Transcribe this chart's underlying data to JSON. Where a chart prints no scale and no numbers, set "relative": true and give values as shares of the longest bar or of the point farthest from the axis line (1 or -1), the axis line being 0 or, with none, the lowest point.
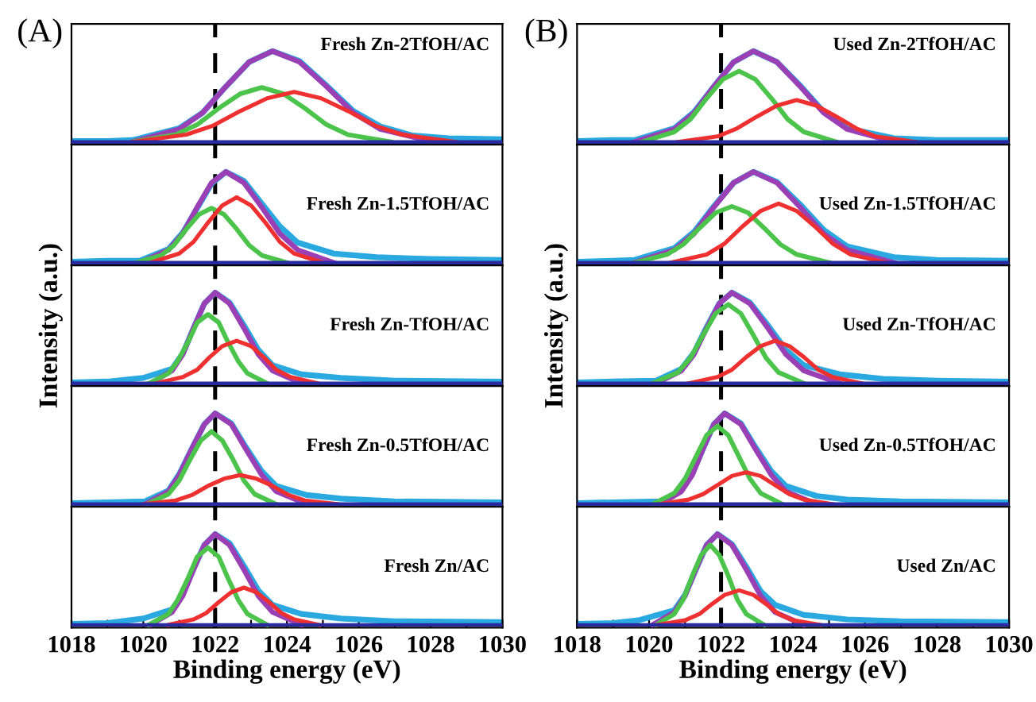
{
  "chart_data": [
    {
      "type": "line",
      "relative": true,
      "xlim": [
        1018,
        1030
      ],
      "tick_labels": false,
      "annotations": [
        "(A)",
        "Fresh Zn-2TfOH/AC"
      ],
      "ref_lines": [
        {
          "axis": "x",
          "value": 1022,
          "color": "#000000",
          "line_style": "dashed"
        }
      ],
      "series": [
        {
          "color": "#29a9e0",
          "x": [
            1018,
            1019,
            1019.7,
            1021,
            1021.65,
            1022.3,
            1022.95,
            1023.6,
            1024.35,
            1025.1,
            1025.85,
            1026.6,
            1027.5,
            1028.5,
            1030
          ],
          "values": [
            0.01,
            0.01,
            0.02,
            0.15,
            0.32,
            0.61,
            0.88,
            1,
            0.89,
            0.62,
            0.34,
            0.17,
            0.07,
            0.04,
            0.03
          ]
        },
        {
          "color": "#9b3fb5",
          "x": [
            1019.7,
            1021.0,
            1021.65,
            1022.3,
            1022.95,
            1023.6,
            1024.35,
            1025.1,
            1025.85,
            1026.6,
            1028.1
          ],
          "values": [
            0,
            0.14,
            0.32,
            0.61,
            0.88,
            1,
            0.88,
            0.61,
            0.32,
            0.14,
            0
          ]
        },
        {
          "color": "#4cc34a",
          "x": [
            1019.7,
            1020.9,
            1021.5,
            1022.1,
            1022.7,
            1023.3,
            1023.9,
            1024.5,
            1025.1,
            1025.7,
            1026.9
          ],
          "values": [
            0,
            0.08,
            0.19,
            0.37,
            0.53,
            0.6,
            0.53,
            0.37,
            0.19,
            0.08,
            0
          ]
        },
        {
          "color": "#ee3030",
          "x": [
            1019.7,
            1021.2,
            1021.95,
            1022.7,
            1023.45,
            1024.2,
            1024.95,
            1025.7,
            1026.45,
            1027.2,
            1028.7
          ],
          "values": [
            0,
            0.08,
            0.18,
            0.34,
            0.48,
            0.55,
            0.48,
            0.34,
            0.18,
            0.08,
            0
          ]
        },
        {
          "color": "#2a2aa0",
          "x": [
            1018,
            1030
          ],
          "values": [
            0,
            0
          ]
        }
      ]
    },
    {
      "type": "line",
      "relative": true,
      "xlim": [
        1018,
        1030
      ],
      "tick_labels": false,
      "annotations": [
        "Fresh Zn-1.5TfOH/AC"
      ],
      "ref_lines": [
        {
          "axis": "x",
          "value": 1022,
          "color": "#000000",
          "line_style": "dashed"
        }
      ],
      "series": [
        {
          "color": "#29a9e0",
          "x": [
            1018,
            1019,
            1019.9,
            1020.7,
            1021.1,
            1021.5,
            1021.9,
            1022.3,
            1022.8,
            1023.3,
            1023.8,
            1024.3,
            1025.3,
            1026.5,
            1028,
            1030
          ],
          "values": [
            0.01,
            0.02,
            0.02,
            0.15,
            0.33,
            0.6,
            0.87,
            1,
            0.9,
            0.65,
            0.4,
            0.22,
            0.1,
            0.06,
            0.04,
            0.03
          ]
        },
        {
          "color": "#9b3fb5",
          "x": [
            1019.9,
            1020.7,
            1021.1,
            1021.5,
            1021.9,
            1022.3,
            1022.8,
            1023.3,
            1023.8,
            1024.3,
            1025.3
          ],
          "values": [
            0,
            0.14,
            0.32,
            0.61,
            0.88,
            1,
            0.88,
            0.61,
            0.32,
            0.14,
            0
          ]
        },
        {
          "color": "#4cc34a",
          "x": [
            1019.8,
            1020.5,
            1020.85,
            1021.2,
            1021.55,
            1021.9,
            1022.25,
            1022.6,
            1022.95,
            1023.3,
            1024.0
          ],
          "values": [
            0,
            0.08,
            0.19,
            0.37,
            0.53,
            0.6,
            0.53,
            0.37,
            0.19,
            0.08,
            0
          ]
        },
        {
          "color": "#ee3030",
          "x": [
            1020.2,
            1021.0,
            1021.4,
            1021.8,
            1022.2,
            1022.6,
            1023.0,
            1023.4,
            1023.8,
            1024.2,
            1025.0
          ],
          "values": [
            0,
            0.1,
            0.23,
            0.44,
            0.63,
            0.72,
            0.63,
            0.44,
            0.23,
            0.1,
            0
          ]
        },
        {
          "color": "#2a2aa0",
          "x": [
            1018,
            1030
          ],
          "values": [
            0,
            0
          ]
        }
      ]
    },
    {
      "type": "line",
      "relative": true,
      "xlim": [
        1018,
        1030
      ],
      "tick_labels": false,
      "ylabel": "Intensity (a.u.)",
      "annotations": [
        "Fresh Zn-TfOH/AC"
      ],
      "ref_lines": [
        {
          "axis": "x",
          "value": 1022,
          "color": "#000000",
          "line_style": "dashed"
        }
      ],
      "series": [
        {
          "color": "#29a9e0",
          "x": [
            1018,
            1019,
            1020,
            1020.8,
            1021.1,
            1021.4,
            1021.7,
            1022,
            1022.4,
            1022.8,
            1023.2,
            1023.6,
            1024.4,
            1025.5,
            1027,
            1030
          ],
          "values": [
            0.01,
            0.02,
            0.06,
            0.16,
            0.33,
            0.61,
            0.88,
            1,
            0.89,
            0.64,
            0.37,
            0.2,
            0.1,
            0.06,
            0.03,
            0.02
          ]
        },
        {
          "color": "#9b3fb5",
          "x": [
            1020.2,
            1020.8,
            1021.1,
            1021.4,
            1021.7,
            1022.0,
            1022.4,
            1022.8,
            1023.2,
            1023.6,
            1024.4
          ],
          "values": [
            0,
            0.14,
            0.32,
            0.61,
            0.88,
            1,
            0.88,
            0.61,
            0.32,
            0.14,
            0
          ]
        },
        {
          "color": "#4cc34a",
          "x": [
            1020.15,
            1020.7,
            1020.95,
            1021.25,
            1021.5,
            1021.8,
            1022.1,
            1022.35,
            1022.65,
            1022.9,
            1023.45
          ],
          "values": [
            0,
            0.11,
            0.24,
            0.46,
            0.67,
            0.76,
            0.67,
            0.46,
            0.24,
            0.11,
            0
          ]
        },
        {
          "color": "#ee3030",
          "x": [
            1020.35,
            1021.1,
            1021.5,
            1021.85,
            1022.2,
            1022.6,
            1023.0,
            1023.35,
            1023.7,
            1024.1,
            1024.85
          ],
          "values": [
            0,
            0.07,
            0.15,
            0.29,
            0.41,
            0.47,
            0.41,
            0.29,
            0.15,
            0.07,
            0
          ]
        },
        {
          "color": "#2a2aa0",
          "x": [
            1018,
            1030
          ],
          "values": [
            0,
            0
          ]
        }
      ]
    },
    {
      "type": "line",
      "relative": true,
      "xlim": [
        1018,
        1030
      ],
      "tick_labels": false,
      "annotations": [
        "Fresh Zn-0.5TfOH/AC"
      ],
      "ref_lines": [
        {
          "axis": "x",
          "value": 1022,
          "color": "#000000",
          "line_style": "dashed"
        }
      ],
      "series": [
        {
          "color": "#29a9e0",
          "x": [
            1018,
            1019,
            1020.05,
            1020.7,
            1021,
            1021.35,
            1021.7,
            1022,
            1022.45,
            1022.85,
            1023.3,
            1023.7,
            1024.55,
            1025.5,
            1027,
            1030
          ],
          "values": [
            0.01,
            0.02,
            0.03,
            0.15,
            0.33,
            0.61,
            0.88,
            1,
            0.89,
            0.63,
            0.36,
            0.2,
            0.1,
            0.06,
            0.03,
            0.02
          ]
        },
        {
          "color": "#9b3fb5",
          "x": [
            1020.05,
            1020.7,
            1021.0,
            1021.35,
            1021.7,
            1022.0,
            1022.45,
            1022.85,
            1023.3,
            1023.7,
            1024.55
          ],
          "values": [
            0,
            0.14,
            0.32,
            0.61,
            0.88,
            1,
            0.88,
            0.61,
            0.32,
            0.14,
            0
          ]
        },
        {
          "color": "#4cc34a",
          "x": [
            1020.1,
            1020.7,
            1021.0,
            1021.3,
            1021.6,
            1021.9,
            1022.2,
            1022.5,
            1022.8,
            1023.1,
            1023.7
          ],
          "values": [
            0,
            0.11,
            0.26,
            0.49,
            0.7,
            0.8,
            0.7,
            0.49,
            0.26,
            0.11,
            0
          ]
        },
        {
          "color": "#ee3030",
          "x": [
            1020.0,
            1020.9,
            1021.35,
            1021.8,
            1022.25,
            1022.7,
            1023.15,
            1023.6,
            1024.05,
            1024.5,
            1025.4
          ],
          "values": [
            0,
            0.04,
            0.1,
            0.2,
            0.28,
            0.32,
            0.28,
            0.2,
            0.1,
            0.04,
            0
          ]
        },
        {
          "color": "#2a2aa0",
          "x": [
            1018,
            1030
          ],
          "values": [
            0,
            0
          ]
        }
      ]
    },
    {
      "type": "line",
      "relative": true,
      "xlim": [
        1018,
        1030
      ],
      "tick_labels": "x",
      "xlabel": "Binding energy (eV)",
      "xticks": [
        1018,
        {
          "value": 1019,
          "label": null
        },
        1020,
        {
          "value": 1021,
          "label": null
        },
        1022,
        {
          "value": 1023,
          "label": null
        },
        1024,
        {
          "value": 1025,
          "label": null
        },
        1026,
        {
          "value": 1027,
          "label": null
        },
        1028,
        {
          "value": 1029,
          "label": null
        },
        1030
      ],
      "annotations": [
        "Fresh Zn/AC"
      ],
      "ref_lines": [
        {
          "axis": "x",
          "value": 1022,
          "color": "#000000",
          "line_style": "dashed"
        }
      ],
      "series": [
        {
          "color": "#29a9e0",
          "x": [
            1018,
            1019,
            1020,
            1020.8,
            1021.1,
            1021.4,
            1021.7,
            1022,
            1022.4,
            1022.8,
            1023.2,
            1023.6,
            1024.4,
            1025.5,
            1027,
            1030
          ],
          "values": [
            0.01,
            0.02,
            0.07,
            0.17,
            0.34,
            0.62,
            0.88,
            1,
            0.9,
            0.65,
            0.38,
            0.22,
            0.12,
            0.07,
            0.04,
            0.03
          ]
        },
        {
          "color": "#9b3fb5",
          "x": [
            1020.2,
            1020.8,
            1021.1,
            1021.4,
            1021.7,
            1022.0,
            1022.4,
            1022.8,
            1023.2,
            1023.6,
            1024.4
          ],
          "values": [
            0,
            0.14,
            0.32,
            0.61,
            0.88,
            1,
            0.88,
            0.61,
            0.32,
            0.14,
            0
          ]
        },
        {
          "color": "#4cc34a",
          "x": [
            1020.15,
            1020.7,
            1020.95,
            1021.25,
            1021.5,
            1021.8,
            1022.1,
            1022.35,
            1022.65,
            1022.9,
            1023.45
          ],
          "values": [
            0,
            0.12,
            0.27,
            0.52,
            0.75,
            0.85,
            0.75,
            0.52,
            0.27,
            0.12,
            0
          ]
        },
        {
          "color": "#ee3030",
          "x": [
            1020.7,
            1021.4,
            1021.75,
            1022.1,
            1022.45,
            1022.8,
            1023.15,
            1023.5,
            1023.85,
            1024.2,
            1024.9
          ],
          "values": [
            0,
            0.06,
            0.13,
            0.25,
            0.36,
            0.41,
            0.36,
            0.25,
            0.13,
            0.06,
            0
          ]
        },
        {
          "color": "#2a2aa0",
          "x": [
            1018,
            1030
          ],
          "values": [
            0,
            0
          ]
        }
      ]
    },
    {
      "type": "line",
      "relative": true,
      "xlim": [
        1018,
        1030
      ],
      "tick_labels": false,
      "annotations": [
        "(B)",
        "Used Zn-2TfOH/AC"
      ],
      "ref_lines": [
        {
          "axis": "x",
          "value": 1022,
          "color": "#000000",
          "line_style": "dashed"
        }
      ],
      "series": [
        {
          "color": "#29a9e0",
          "x": [
            1018,
            1019,
            1019.6,
            1020.7,
            1021.25,
            1021.8,
            1022.35,
            1022.9,
            1023.55,
            1024.2,
            1024.85,
            1025.5,
            1026.8,
            1028,
            1030
          ],
          "values": [
            0.01,
            0.02,
            0.02,
            0.15,
            0.33,
            0.61,
            0.88,
            1,
            0.88,
            0.62,
            0.33,
            0.15,
            0.04,
            0.02,
            0.02
          ]
        },
        {
          "color": "#9b3fb5",
          "x": [
            1019.6,
            1020.7,
            1021.25,
            1021.8,
            1022.35,
            1022.9,
            1023.55,
            1024.2,
            1024.85,
            1025.5,
            1026.8
          ],
          "values": [
            0,
            0.14,
            0.32,
            0.61,
            0.88,
            1,
            0.88,
            0.61,
            0.32,
            0.14,
            0
          ]
        },
        {
          "color": "#4cc34a",
          "x": [
            1019.8,
            1020.7,
            1021.15,
            1021.6,
            1022.05,
            1022.5,
            1022.95,
            1023.4,
            1023.85,
            1024.3,
            1025.2
          ],
          "values": [
            0,
            0.11,
            0.25,
            0.48,
            0.69,
            0.78,
            0.69,
            0.48,
            0.25,
            0.11,
            0
          ]
        },
        {
          "color": "#ee3030",
          "x": [
            1020.8,
            1021.9,
            1022.45,
            1023.0,
            1023.55,
            1024.1,
            1024.65,
            1025.2,
            1025.75,
            1026.3,
            1027.4
          ],
          "values": [
            0,
            0.06,
            0.15,
            0.28,
            0.4,
            0.46,
            0.4,
            0.28,
            0.15,
            0.06,
            0
          ]
        },
        {
          "color": "#2a2aa0",
          "x": [
            1018,
            1030
          ],
          "values": [
            0,
            0
          ]
        }
      ]
    },
    {
      "type": "line",
      "relative": true,
      "xlim": [
        1018,
        1030
      ],
      "tick_labels": false,
      "annotations": [
        "Used Zn-1.5TfOH/AC"
      ],
      "ref_lines": [
        {
          "axis": "x",
          "value": 1022,
          "color": "#000000",
          "line_style": "dashed"
        }
      ],
      "series": [
        {
          "color": "#29a9e0",
          "x": [
            1018,
            1019,
            1019.6,
            1020.7,
            1021.25,
            1021.8,
            1022.35,
            1022.9,
            1023.55,
            1024.2,
            1024.85,
            1025.5,
            1026.8,
            1028,
            1030
          ],
          "values": [
            0.01,
            0.02,
            0.03,
            0.16,
            0.34,
            0.62,
            0.88,
            1,
            0.89,
            0.64,
            0.36,
            0.18,
            0.06,
            0.03,
            0.02
          ]
        },
        {
          "color": "#9b3fb5",
          "x": [
            1019.6,
            1020.7,
            1021.25,
            1021.8,
            1022.35,
            1022.9,
            1023.55,
            1024.2,
            1024.85,
            1025.5,
            1026.8
          ],
          "values": [
            0,
            0.14,
            0.32,
            0.61,
            0.88,
            1,
            0.88,
            0.61,
            0.32,
            0.14,
            0
          ]
        },
        {
          "color": "#4cc34a",
          "x": [
            1019.6,
            1020.5,
            1020.95,
            1021.4,
            1021.85,
            1022.3,
            1022.75,
            1023.2,
            1023.65,
            1024.1,
            1025.0
          ],
          "values": [
            0,
            0.09,
            0.2,
            0.38,
            0.55,
            0.62,
            0.55,
            0.38,
            0.2,
            0.09,
            0
          ]
        },
        {
          "color": "#ee3030",
          "x": [
            1020.6,
            1021.6,
            1022.1,
            1022.6,
            1023.1,
            1023.6,
            1024.1,
            1024.6,
            1025.1,
            1025.6,
            1026.6
          ],
          "values": [
            0,
            0.09,
            0.21,
            0.4,
            0.57,
            0.65,
            0.57,
            0.4,
            0.21,
            0.09,
            0
          ]
        },
        {
          "color": "#2a2aa0",
          "x": [
            1018,
            1030
          ],
          "values": [
            0,
            0
          ]
        }
      ]
    },
    {
      "type": "line",
      "relative": true,
      "xlim": [
        1018,
        1030
      ],
      "tick_labels": false,
      "ylabel": "Intensity (a.u.)",
      "annotations": [
        "Used Zn-TfOH/AC"
      ],
      "ref_lines": [
        {
          "axis": "x",
          "value": 1022,
          "color": "#000000",
          "line_style": "dashed"
        }
      ],
      "series": [
        {
          "color": "#29a9e0",
          "x": [
            1018,
            1019,
            1020.2,
            1020.9,
            1021.25,
            1021.6,
            1021.95,
            1022.3,
            1022.8,
            1023.3,
            1023.8,
            1024.3,
            1025.3,
            1026.5,
            1028,
            1030
          ],
          "values": [
            0.01,
            0.02,
            0.03,
            0.16,
            0.34,
            0.62,
            0.88,
            1,
            0.89,
            0.64,
            0.37,
            0.2,
            0.1,
            0.05,
            0.03,
            0.02
          ]
        },
        {
          "color": "#9b3fb5",
          "x": [
            1020.2,
            1020.9,
            1021.25,
            1021.6,
            1021.95,
            1022.3,
            1022.8,
            1023.3,
            1023.8,
            1024.3,
            1025.3
          ],
          "values": [
            0,
            0.14,
            0.32,
            0.61,
            0.88,
            1,
            0.88,
            0.61,
            0.32,
            0.14,
            0
          ]
        },
        {
          "color": "#4cc34a",
          "x": [
            1020.1,
            1020.8,
            1021.15,
            1021.5,
            1021.85,
            1022.2,
            1022.55,
            1022.9,
            1023.25,
            1023.6,
            1024.3
          ],
          "values": [
            0,
            0.12,
            0.28,
            0.53,
            0.77,
            0.87,
            0.77,
            0.53,
            0.28,
            0.12,
            0
          ]
        },
        {
          "color": "#ee3030",
          "x": [
            1021.1,
            1021.9,
            1022.3,
            1022.7,
            1023.1,
            1023.5,
            1023.9,
            1024.3,
            1024.7,
            1025.1,
            1025.9
          ],
          "values": [
            0,
            0.07,
            0.15,
            0.29,
            0.41,
            0.47,
            0.41,
            0.29,
            0.15,
            0.07,
            0
          ]
        },
        {
          "color": "#2a2aa0",
          "x": [
            1018,
            1030
          ],
          "values": [
            0,
            0
          ]
        }
      ]
    },
    {
      "type": "line",
      "relative": true,
      "xlim": [
        1018,
        1030
      ],
      "tick_labels": false,
      "annotations": [
        "Used Zn-0.5TfOH/AC"
      ],
      "ref_lines": [
        {
          "axis": "x",
          "value": 1022,
          "color": "#000000",
          "line_style": "dashed"
        }
      ],
      "series": [
        {
          "color": "#29a9e0",
          "x": [
            1018,
            1019,
            1020.3,
            1020.9,
            1021.2,
            1021.5,
            1021.8,
            1022.1,
            1022.55,
            1022.95,
            1023.4,
            1023.8,
            1024.65,
            1025.5,
            1027,
            1030
          ],
          "values": [
            0.01,
            0.02,
            0.03,
            0.15,
            0.33,
            0.61,
            0.88,
            1,
            0.89,
            0.63,
            0.36,
            0.2,
            0.09,
            0.05,
            0.03,
            0.02
          ]
        },
        {
          "color": "#9b3fb5",
          "x": [
            1020.3,
            1020.9,
            1021.2,
            1021.5,
            1021.8,
            1022.1,
            1022.55,
            1022.95,
            1023.4,
            1023.8,
            1024.65
          ],
          "values": [
            0,
            0.14,
            0.32,
            0.61,
            0.88,
            1,
            0.88,
            0.61,
            0.32,
            0.14,
            0
          ]
        },
        {
          "color": "#4cc34a",
          "x": [
            1020.1,
            1020.7,
            1021.0,
            1021.3,
            1021.6,
            1021.9,
            1022.2,
            1022.5,
            1022.8,
            1023.1,
            1023.7
          ],
          "values": [
            0,
            0.12,
            0.28,
            0.52,
            0.76,
            0.86,
            0.76,
            0.52,
            0.28,
            0.12,
            0
          ]
        },
        {
          "color": "#ee3030",
          "x": [
            1020.3,
            1021.1,
            1021.5,
            1021.9,
            1022.3,
            1022.7,
            1023.1,
            1023.5,
            1023.9,
            1024.3,
            1025.1
          ],
          "values": [
            0,
            0.05,
            0.11,
            0.21,
            0.31,
            0.35,
            0.31,
            0.21,
            0.11,
            0.05,
            0
          ]
        },
        {
          "color": "#2a2aa0",
          "x": [
            1018,
            1030
          ],
          "values": [
            0,
            0
          ]
        }
      ]
    },
    {
      "type": "line",
      "relative": true,
      "xlim": [
        1018,
        1030
      ],
      "tick_labels": "x",
      "xlabel": "Binding energy (eV)",
      "xticks": [
        1018,
        {
          "value": 1019,
          "label": null
        },
        1020,
        {
          "value": 1021,
          "label": null
        },
        1022,
        {
          "value": 1023,
          "label": null
        },
        1024,
        {
          "value": 1025,
          "label": null
        },
        1026,
        {
          "value": 1027,
          "label": null
        },
        1028,
        {
          "value": 1029,
          "label": null
        },
        1030
      ],
      "annotations": [
        "Used Zn/AC"
      ],
      "ref_lines": [
        {
          "axis": "x",
          "value": 1022,
          "color": "#000000",
          "line_style": "dashed"
        }
      ],
      "series": [
        {
          "color": "#29a9e0",
          "x": [
            1018,
            1019,
            1019.7,
            1020.7,
            1021,
            1021.3,
            1021.6,
            1021.9,
            1022.3,
            1022.7,
            1023.1,
            1023.5,
            1024.3,
            1025.5,
            1027,
            1030
          ],
          "values": [
            0.01,
            0.02,
            0.05,
            0.16,
            0.33,
            0.61,
            0.88,
            1,
            0.89,
            0.64,
            0.37,
            0.22,
            0.11,
            0.06,
            0.04,
            0.03
          ]
        },
        {
          "color": "#9b3fb5",
          "x": [
            1020.1,
            1020.7,
            1021.0,
            1021.3,
            1021.6,
            1021.9,
            1022.3,
            1022.7,
            1023.1,
            1023.5,
            1024.3
          ],
          "values": [
            0,
            0.14,
            0.32,
            0.61,
            0.88,
            1,
            0.88,
            0.61,
            0.32,
            0.14,
            0
          ]
        },
        {
          "color": "#4cc34a",
          "x": [
            1020.2,
            1020.7,
            1020.95,
            1021.2,
            1021.45,
            1021.7,
            1021.95,
            1022.2,
            1022.45,
            1022.7,
            1023.2
          ],
          "values": [
            0,
            0.12,
            0.28,
            0.54,
            0.77,
            0.88,
            0.77,
            0.54,
            0.28,
            0.12,
            0
          ]
        },
        {
          "color": "#ee3030",
          "x": [
            1020.25,
            1021.0,
            1021.4,
            1021.75,
            1022.1,
            1022.5,
            1022.9,
            1023.25,
            1023.6,
            1024.0,
            1024.75
          ],
          "values": [
            0,
            0.05,
            0.12,
            0.23,
            0.33,
            0.38,
            0.33,
            0.23,
            0.12,
            0.05,
            0
          ]
        },
        {
          "color": "#2a2aa0",
          "x": [
            1018,
            1030
          ],
          "values": [
            0,
            0
          ]
        }
      ]
    }
  ]
}
